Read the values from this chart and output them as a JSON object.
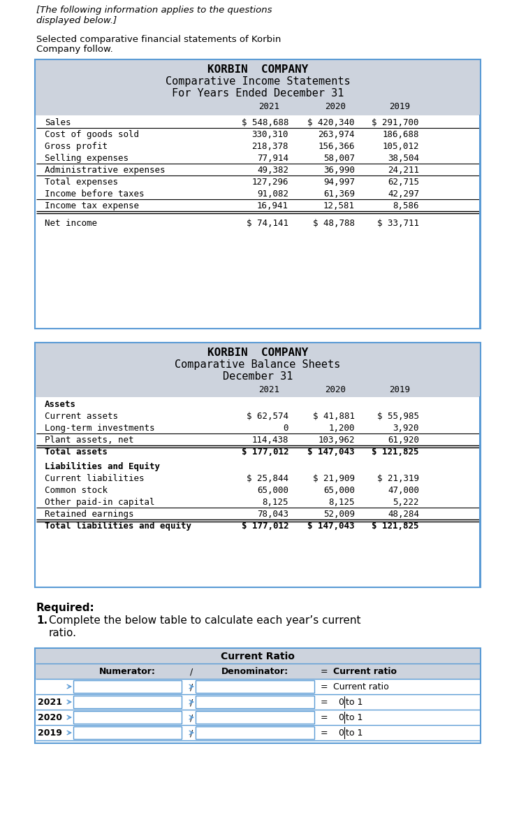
{
  "page_bg": "#ffffff",
  "header_text1": "[The following information applies to the questions",
  "header_text2": "displayed below.]",
  "intro_text1": "Selected comparative financial statements of Korbin",
  "intro_text2": "Company follow.",
  "inc_title1": "KORBIN  COMPANY",
  "inc_title2": "Comparative Income Statements",
  "inc_title3": "For Years Ended December 31",
  "inc_box_bg": "#cdd3dd",
  "inc_years": [
    "2021",
    "2020",
    "2019"
  ],
  "inc_rows": [
    [
      "Sales",
      "$ 548,688",
      "$ 420,340",
      "$ 291,700"
    ],
    [
      "Cost of goods sold",
      "330,310",
      "263,974",
      "186,688"
    ],
    [
      "Gross profit",
      "218,378",
      "156,366",
      "105,012"
    ],
    [
      "Selling expenses",
      "77,914",
      "58,007",
      "38,504"
    ],
    [
      "Administrative expenses",
      "49,382",
      "36,990",
      "24,211"
    ],
    [
      "Total expenses",
      "127,296",
      "94,997",
      "62,715"
    ],
    [
      "Income before taxes",
      "91,082",
      "61,369",
      "42,297"
    ],
    [
      "Income tax expense",
      "16,941",
      "12,581",
      "8,586"
    ],
    [
      "Net income",
      "$ 74,141",
      "$ 48,788",
      "$ 33,711"
    ]
  ],
  "inc_bold_rows": [],
  "inc_underline_after": [
    1,
    4,
    7
  ],
  "inc_double_underline_after": [
    8
  ],
  "inc_total_underline_after": [
    5
  ],
  "inc_net_income_gap_before": true,
  "bal_title1": "KORBIN  COMPANY",
  "bal_title2": "Comparative Balance Sheets",
  "bal_title3": "December 31",
  "bal_box_bg": "#cdd3dd",
  "bal_years": [
    "2021",
    "2020",
    "2019"
  ],
  "bal_asset_header": "Assets",
  "bal_asset_rows": [
    [
      "Current assets",
      "$ 62,574",
      "$ 41,881",
      "$ 55,985"
    ],
    [
      "Long-term investments",
      "0",
      "1,200",
      "3,920"
    ],
    [
      "Plant assets, net",
      "114,438",
      "103,962",
      "61,920"
    ],
    [
      "Total assets",
      "$ 177,012",
      "$ 147,043",
      "$ 121,825"
    ]
  ],
  "bal_asset_underline_after": [
    2
  ],
  "bal_asset_double_after": [
    3
  ],
  "bal_asset_bold_rows": [
    3
  ],
  "bal_liab_header": "Liabilities and Equity",
  "bal_liab_rows": [
    [
      "Current liabilities",
      "$ 25,844",
      "$ 21,909",
      "$ 21,319"
    ],
    [
      "Common stock",
      "65,000",
      "65,000",
      "47,000"
    ],
    [
      "Other paid-in capital",
      "8,125",
      "8,125",
      "5,222"
    ],
    [
      "Retained earnings",
      "78,043",
      "52,009",
      "48,284"
    ],
    [
      "Total liabilities and equity",
      "$ 177,012",
      "$ 147,043",
      "$ 121,825"
    ]
  ],
  "bal_liab_underline_after": [
    3
  ],
  "bal_liab_double_after": [
    4
  ],
  "bal_liab_bold_rows": [
    4
  ],
  "required_bold": "Required:",
  "required_num": "1.",
  "required_text": "Complete the below table to calculate each year’s current",
  "required_text2": "ratio.",
  "cr_box_bg": "#cdd3dd",
  "cr_title": "Current Ratio",
  "cr_col_headers": [
    "Numerator:",
    "/",
    "Denominator:",
    "=",
    "Current ratio"
  ],
  "cr_years": [
    "2021",
    "2020",
    "2019"
  ]
}
